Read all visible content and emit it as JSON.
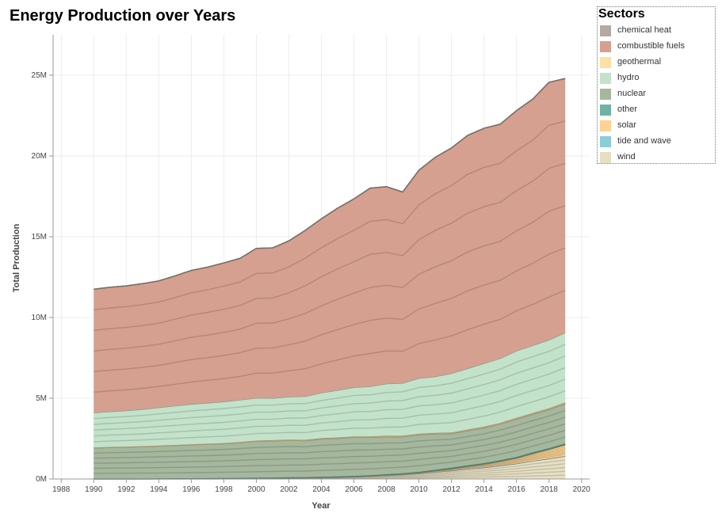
{
  "chart_data": {
    "type": "area",
    "stacked": true,
    "title": "Energy Production over Years",
    "xlabel": "Year",
    "ylabel": "Total Production",
    "xlim": [
      1987.5,
      2020.5
    ],
    "ylim": [
      0,
      27500000
    ],
    "x_ticks": [
      "1988",
      "1990",
      "1992",
      "1994",
      "1996",
      "1998",
      "2000",
      "2002",
      "2004",
      "2006",
      "2008",
      "2010",
      "2012",
      "2014",
      "2016",
      "2018",
      "2020"
    ],
    "y_ticks": [
      {
        "value": 0,
        "label": "0M"
      },
      {
        "value": 5000000,
        "label": "5M"
      },
      {
        "value": 10000000,
        "label": "10M"
      },
      {
        "value": 15000000,
        "label": "15M"
      },
      {
        "value": 20000000,
        "label": "20M"
      },
      {
        "value": 25000000,
        "label": "25M"
      }
    ],
    "grid": true,
    "legend_title": "Sectors",
    "legend_position": "top-right",
    "x": [
      1990,
      1991,
      1992,
      1993,
      1994,
      1995,
      1996,
      1997,
      1998,
      1999,
      2000,
      2001,
      2002,
      2003,
      2004,
      2005,
      2006,
      2007,
      2008,
      2009,
      2010,
      2011,
      2012,
      2013,
      2014,
      2015,
      2016,
      2017,
      2018,
      2019
    ],
    "series": [
      {
        "name": "wind",
        "color": "#e6dfc3",
        "values": [
          4000,
          5000,
          6000,
          7000,
          8000,
          10000,
          12000,
          14000,
          18000,
          22000,
          30000,
          38000,
          50000,
          60000,
          80000,
          100000,
          130000,
          170000,
          220000,
          270000,
          340000,
          430000,
          520000,
          630000,
          710000,
          830000,
          950000,
          1120000,
          1260000,
          1420000
        ]
      },
      {
        "name": "tide and wave",
        "color": "#8dcdd5",
        "values": [
          500,
          500,
          500,
          500,
          500,
          500,
          500,
          500,
          500,
          500,
          500,
          500,
          500,
          500,
          500,
          500,
          500,
          500,
          500,
          500,
          500,
          1000,
          1000,
          1000,
          1000,
          1000,
          1000,
          1000,
          1000,
          1000
        ]
      },
      {
        "name": "solar",
        "color": "#fdd393",
        "values": [
          100,
          100,
          100,
          200,
          200,
          200,
          300,
          300,
          400,
          400,
          500,
          600,
          800,
          1000,
          1500,
          2000,
          3000,
          5000,
          12000,
          20000,
          32000,
          64000,
          100000,
          135000,
          190000,
          250000,
          330000,
          440000,
          560000,
          680000
        ]
      },
      {
        "name": "other",
        "color": "#6fb3a3",
        "values": [
          30000,
          31000,
          32000,
          33000,
          34000,
          36000,
          38000,
          40000,
          42000,
          44000,
          46000,
          48000,
          50000,
          52000,
          55000,
          58000,
          60000,
          62000,
          64000,
          66000,
          70000,
          72000,
          74000,
          76000,
          78000,
          80000,
          82000,
          84000,
          86000,
          88000
        ]
      },
      {
        "name": "nuclear",
        "color": "#a5b79d",
        "values": [
          1880000,
          1910000,
          1930000,
          1955000,
          1990000,
          2020000,
          2060000,
          2090000,
          2120000,
          2180000,
          2250000,
          2270000,
          2290000,
          2260000,
          2340000,
          2360000,
          2390000,
          2340000,
          2320000,
          2260000,
          2300000,
          2220000,
          2120000,
          2150000,
          2190000,
          2240000,
          2340000,
          2360000,
          2390000,
          2460000
        ]
      },
      {
        "name": "geothermal",
        "color": "#fde0a4",
        "values": [
          36000,
          37000,
          38000,
          39000,
          40000,
          40000,
          41000,
          43000,
          44000,
          46000,
          48000,
          49000,
          51000,
          52000,
          54000,
          55000,
          56000,
          57000,
          59000,
          62000,
          65000,
          66000,
          68000,
          70000,
          72000,
          74000,
          80000,
          83000,
          87000,
          90000
        ]
      },
      {
        "name": "hydro",
        "color": "#c3e2ca",
        "values": [
          2150000,
          2190000,
          2230000,
          2280000,
          2350000,
          2420000,
          2480000,
          2520000,
          2560000,
          2600000,
          2640000,
          2600000,
          2650000,
          2690000,
          2800000,
          2920000,
          3030000,
          3090000,
          3220000,
          3260000,
          3430000,
          3490000,
          3650000,
          3780000,
          3910000,
          3990000,
          4150000,
          4180000,
          4220000,
          4320000
        ]
      },
      {
        "name": "combustible fuels",
        "color": "#d5a090",
        "values": [
          7650000,
          7700000,
          7720000,
          7780000,
          7840000,
          8050000,
          8280000,
          8410000,
          8590000,
          8770000,
          9260000,
          9300000,
          9650000,
          10270000,
          10780000,
          11270000,
          11670000,
          12280000,
          12200000,
          11830000,
          12880000,
          13570000,
          13960000,
          14430000,
          14560000,
          14500000,
          14870000,
          15250000,
          15950000,
          15730000
        ]
      },
      {
        "name": "chemical heat",
        "color": "#b2aaa0",
        "values": [
          1000,
          1000,
          1000,
          2000,
          2000,
          2000,
          2000,
          3000,
          3000,
          3000,
          4000,
          4000,
          4000,
          5000,
          5000,
          5000,
          6000,
          6000,
          6000,
          7000,
          7000,
          7000,
          8000,
          8000,
          8000,
          9000,
          9000,
          9000,
          10000,
          10000
        ]
      }
    ]
  }
}
